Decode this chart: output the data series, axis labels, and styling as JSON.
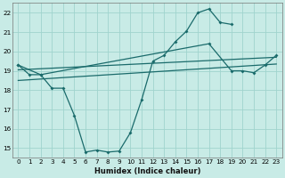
{
  "background_color": "#c8ebe6",
  "grid_color": "#a0d4ce",
  "line_color": "#1a6b6b",
  "xlabel": "Humidex (Indice chaleur)",
  "xlim": [
    -0.5,
    23.5
  ],
  "ylim": [
    14.5,
    22.5
  ],
  "xticks": [
    0,
    1,
    2,
    3,
    4,
    5,
    6,
    7,
    8,
    9,
    10,
    11,
    12,
    13,
    14,
    15,
    16,
    17,
    18,
    19,
    20,
    21,
    22,
    23
  ],
  "yticks": [
    15,
    16,
    17,
    18,
    19,
    20,
    21,
    22
  ],
  "line1_x": [
    0,
    1,
    2,
    3,
    4,
    5,
    6,
    7,
    8,
    9,
    10,
    11,
    12,
    13,
    14,
    15,
    16,
    17,
    18,
    19
  ],
  "line1_y": [
    19.3,
    18.8,
    18.8,
    18.1,
    18.1,
    16.7,
    14.8,
    14.9,
    14.8,
    14.85,
    15.8,
    17.5,
    19.5,
    19.8,
    20.5,
    21.05,
    22.0,
    22.2,
    21.5,
    21.4
  ],
  "line2_x": [
    0,
    2,
    17,
    19,
    20,
    21,
    22,
    23
  ],
  "line2_y": [
    19.3,
    18.8,
    20.4,
    19.0,
    19.0,
    18.9,
    19.3,
    19.8
  ],
  "line3_x": [
    0,
    23
  ],
  "line3_y": [
    19.05,
    19.7
  ],
  "line4_x": [
    0,
    23
  ],
  "line4_y": [
    18.5,
    19.35
  ]
}
